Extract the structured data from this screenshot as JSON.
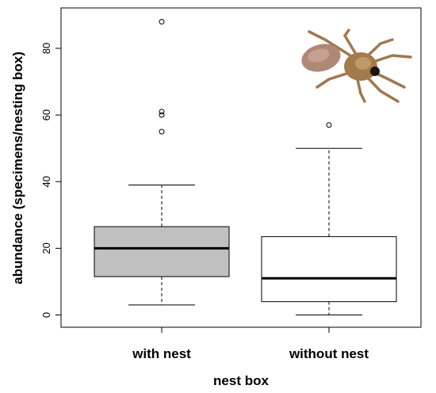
{
  "chart_data": {
    "type": "boxplot",
    "xlabel": "nest box",
    "ylabel": "abundance (specimens/nesting box)",
    "ylim": [
      -3,
      92
    ],
    "yticks": [
      0,
      20,
      40,
      60,
      80
    ],
    "categories": [
      "with nest",
      "without nest"
    ],
    "boxes": [
      {
        "name": "with nest",
        "whisker_low": 3,
        "q1": 11.5,
        "median": 20,
        "q3": 26.5,
        "whisker_high": 39,
        "outliers": [
          55,
          60,
          61,
          88
        ],
        "fill": "#c0c0c0"
      },
      {
        "name": "without nest",
        "whisker_low": 0,
        "q1": 4,
        "median": 11,
        "q3": 23.5,
        "whisker_high": 50,
        "outliers": [
          57
        ],
        "fill": "#ffffff"
      }
    ],
    "grid": false,
    "legend": "none",
    "decoration": "spider-photo-icon"
  }
}
